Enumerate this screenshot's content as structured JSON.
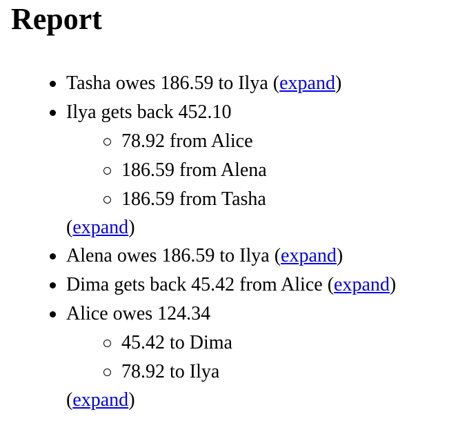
{
  "title": "Report",
  "link_label": "expand",
  "items": [
    {
      "text": "Tasha owes 186.59 to Ilya",
      "children": [],
      "expand": "expand"
    },
    {
      "text": "Ilya gets back 452.10",
      "children": [
        "78.92 from Alice",
        "186.59 from Alena",
        "186.59 from Tasha"
      ],
      "expand": "expand"
    },
    {
      "text": "Alena owes 186.59 to Ilya",
      "children": [],
      "expand": "expand"
    },
    {
      "text": "Dima gets back 45.42 from Alice",
      "children": [],
      "expand": "expand"
    },
    {
      "text": "Alice owes 124.34",
      "children": [
        "45.42 to Dima",
        "78.92 to Ilya"
      ],
      "expand": "expand"
    }
  ]
}
